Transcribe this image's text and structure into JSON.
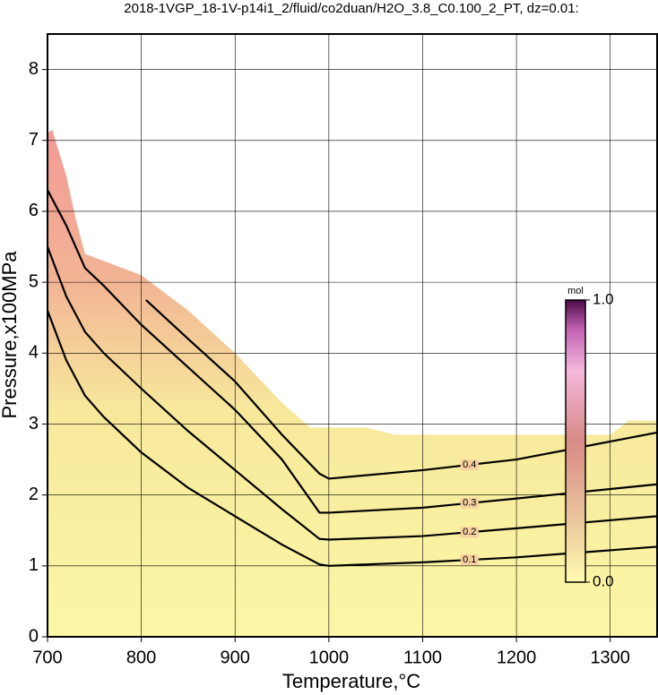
{
  "chart_data": {
    "type": "contour",
    "title": "2018-1VGP_18-1V-p14i1_2/fluid/co2duan/H2O_3.8_C0.100_2_PT, dz=0.01:",
    "x_label": "Temperature,°C",
    "y_label": "Pressure,x100MPa",
    "xlim": [
      700,
      1350
    ],
    "ylim": [
      0,
      8.5
    ],
    "xticks": [
      700,
      800,
      900,
      1000,
      1100,
      1200,
      1300
    ],
    "yticks": [
      0,
      1,
      2,
      3,
      4,
      5,
      6,
      7,
      8
    ],
    "grid": true,
    "region": {
      "x": [
        700,
        705,
        720,
        730,
        740,
        760,
        800,
        850,
        900,
        950,
        980,
        1040,
        1070,
        1300,
        1320,
        1350
      ],
      "y": [
        7.1,
        7.15,
        6.5,
        5.9,
        5.4,
        5.3,
        5.1,
        4.6,
        4.0,
        3.3,
        2.95,
        2.95,
        2.85,
        2.85,
        3.05,
        3.05
      ]
    },
    "series": [
      {
        "name": "0.1",
        "x": [
          700,
          720,
          740,
          760,
          800,
          850,
          900,
          950,
          990,
          1000,
          1100,
          1200,
          1350
        ],
        "y": [
          4.6,
          3.9,
          3.4,
          3.1,
          2.6,
          2.1,
          1.7,
          1.3,
          1.02,
          1.0,
          1.05,
          1.12,
          1.27
        ]
      },
      {
        "name": "0.2",
        "x": [
          700,
          720,
          740,
          760,
          800,
          850,
          900,
          950,
          990,
          1000,
          1100,
          1200,
          1350
        ],
        "y": [
          5.5,
          4.8,
          4.3,
          4.0,
          3.5,
          2.9,
          2.35,
          1.8,
          1.38,
          1.37,
          1.42,
          1.53,
          1.7
        ]
      },
      {
        "name": "0.3",
        "x": [
          700,
          720,
          740,
          760,
          800,
          850,
          900,
          950,
          990,
          1000,
          1100,
          1200,
          1350
        ],
        "y": [
          6.3,
          5.8,
          5.2,
          4.95,
          4.4,
          3.8,
          3.2,
          2.5,
          1.75,
          1.75,
          1.82,
          1.95,
          2.15
        ]
      },
      {
        "name": "0.4",
        "x": [
          805,
          850,
          900,
          950,
          990,
          1000,
          1100,
          1200,
          1350
        ],
        "y": [
          4.75,
          4.2,
          3.6,
          2.85,
          2.3,
          2.23,
          2.35,
          2.5,
          2.88
        ]
      }
    ],
    "colorbar": {
      "label": "mol",
      "clim": [
        0,
        1
      ],
      "ticks": [
        {
          "value": 0,
          "label": "0.0"
        },
        {
          "value": 1,
          "label": "1.0"
        }
      ]
    }
  }
}
